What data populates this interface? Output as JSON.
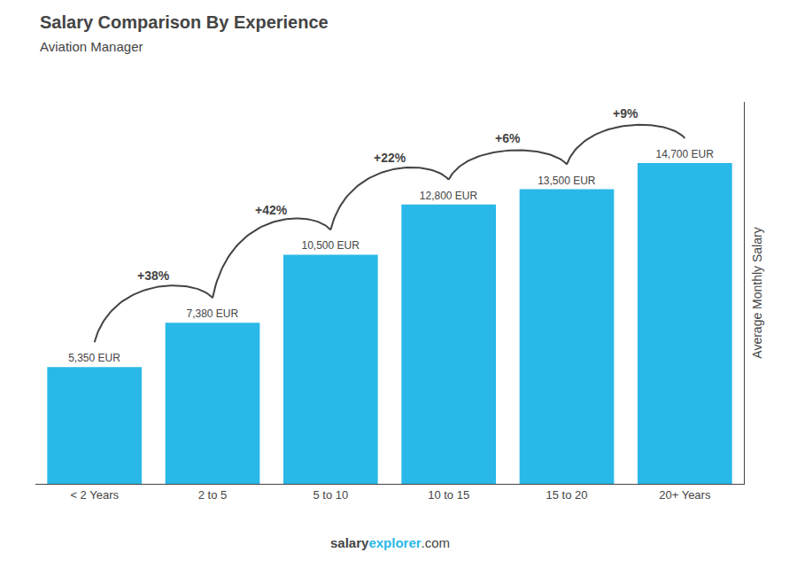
{
  "chart_data": {
    "type": "bar",
    "title": "Salary Comparison By Experience",
    "subtitle": "Aviation Manager",
    "ylabel": "Average Monthly Salary",
    "categories": [
      "< 2 Years",
      "2 to 5",
      "5 to 10",
      "10 to 15",
      "15 to 20",
      "20+ Years"
    ],
    "values": [
      5350,
      7380,
      10500,
      12800,
      13500,
      14700
    ],
    "value_labels": [
      "5,350 EUR",
      "7,380 EUR",
      "10,500 EUR",
      "12,800 EUR",
      "13,500 EUR",
      "14,700 EUR"
    ],
    "data_labels": true,
    "color": "#29B8E8",
    "annotations": [
      "+38%",
      "+42%",
      "+22%",
      "+6%",
      "+9%"
    ],
    "footer": [
      {
        "text": "salary",
        "color": "#FFFFFF"
      },
      {
        "text": "explorer",
        "color": "#29B8E8"
      },
      {
        "text": ".com",
        "color": "#FFFFFF"
      }
    ],
    "ylim": [
      0,
      17500
    ],
    "grid": false,
    "tick_labels": "x"
  }
}
